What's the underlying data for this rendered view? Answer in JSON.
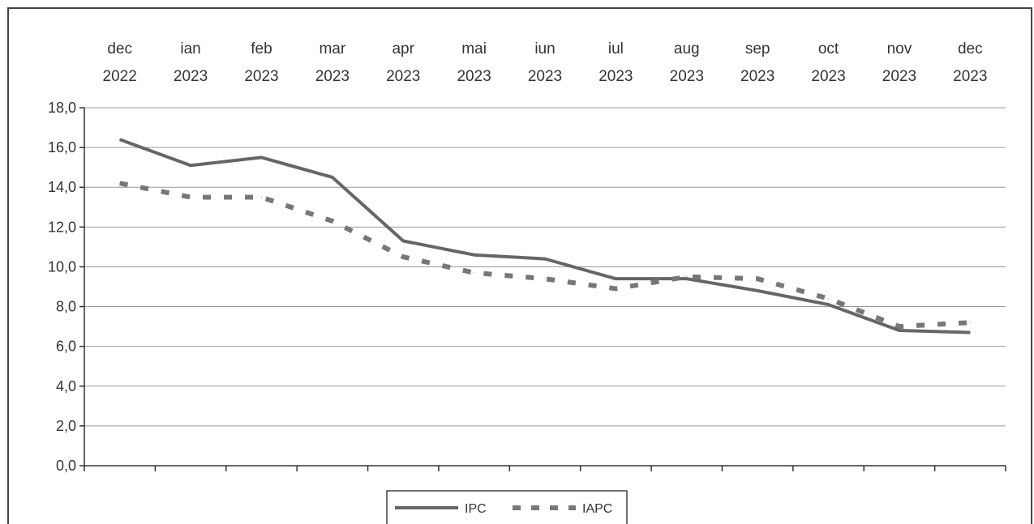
{
  "chart_data": {
    "type": "line",
    "title": "",
    "xlabel": "",
    "ylabel": "",
    "categories": [
      {
        "month": "dec",
        "year": "2022"
      },
      {
        "month": "ian",
        "year": "2023"
      },
      {
        "month": "feb",
        "year": "2023"
      },
      {
        "month": "mar",
        "year": "2023"
      },
      {
        "month": "apr",
        "year": "2023"
      },
      {
        "month": "mai",
        "year": "2023"
      },
      {
        "month": "iun",
        "year": "2023"
      },
      {
        "month": "iul",
        "year": "2023"
      },
      {
        "month": "aug",
        "year": "2023"
      },
      {
        "month": "sep",
        "year": "2023"
      },
      {
        "month": "oct",
        "year": "2023"
      },
      {
        "month": "nov",
        "year": "2023"
      },
      {
        "month": "dec",
        "year": "2023"
      }
    ],
    "series": [
      {
        "name": "IPC",
        "style": "solid",
        "color": "#666666",
        "values": [
          16.4,
          15.1,
          15.5,
          14.5,
          11.3,
          10.6,
          10.4,
          9.4,
          9.4,
          8.8,
          8.1,
          6.8,
          6.7
        ]
      },
      {
        "name": "IAPC",
        "style": "dashed",
        "color": "#777777",
        "values": [
          14.2,
          13.5,
          13.5,
          12.3,
          10.5,
          9.7,
          9.4,
          8.9,
          9.5,
          9.4,
          8.4,
          7.0,
          7.2
        ]
      }
    ],
    "ylim": [
      0,
      18
    ],
    "yticks": [
      "0,0",
      "2,0",
      "4,0",
      "6,0",
      "8,0",
      "10,0",
      "12,0",
      "14,0",
      "16,0",
      "18,0"
    ],
    "grid": true,
    "legend_position": "bottom-center",
    "x_axis_labels_position": "top"
  }
}
